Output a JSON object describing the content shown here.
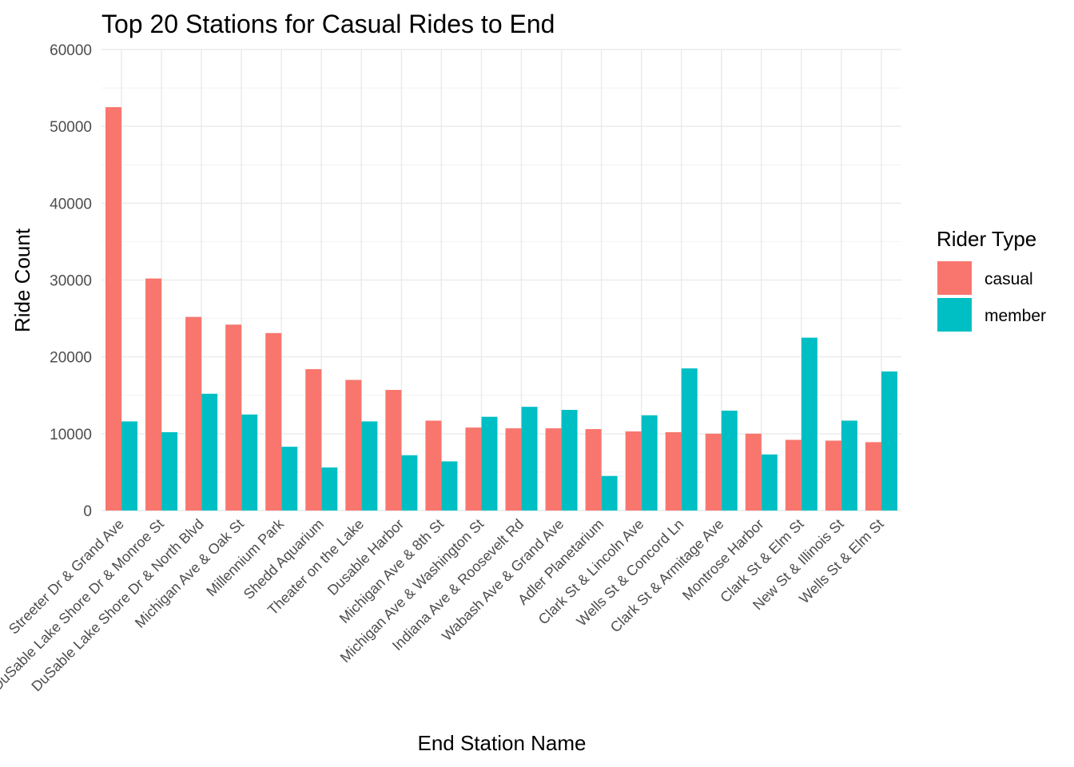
{
  "chart_data": {
    "type": "bar",
    "title": "Top 20 Stations for Casual Rides to End",
    "xlabel": "End Station Name",
    "ylabel": "Ride Count",
    "ylim": [
      0,
      60000
    ],
    "yticks": [
      0,
      10000,
      20000,
      30000,
      40000,
      50000,
      60000
    ],
    "grid": true,
    "legend": {
      "title": "Rider Type",
      "position": "right"
    },
    "categories": [
      "Streeter Dr & Grand Ave",
      "DuSable Lake Shore Dr & Monroe St",
      "DuSable Lake Shore Dr & North Blvd",
      "Michigan Ave & Oak St",
      "Millennium Park",
      "Shedd Aquarium",
      "Theater on the Lake",
      "Dusable Harbor",
      "Michigan Ave & 8th St",
      "Michigan Ave & Washington St",
      "Indiana Ave & Roosevelt Rd",
      "Wabash Ave & Grand Ave",
      "Adler Planetarium",
      "Clark St & Lincoln Ave",
      "Wells St & Concord Ln",
      "Clark St & Armitage Ave",
      "Montrose Harbor",
      "Clark St & Elm St",
      "New St & Illinois St",
      "Wells St & Elm St"
    ],
    "series": [
      {
        "name": "casual",
        "color": "#F8766D",
        "values": [
          52500,
          30200,
          25200,
          24200,
          23100,
          18400,
          17000,
          15700,
          11700,
          10800,
          10700,
          10700,
          10600,
          10300,
          10200,
          10000,
          10000,
          9200,
          9100,
          8900
        ]
      },
      {
        "name": "member",
        "color": "#00BFC4",
        "values": [
          11600,
          10200,
          15200,
          12500,
          8300,
          5600,
          11600,
          7200,
          6400,
          12200,
          13500,
          13100,
          4500,
          12400,
          18500,
          13000,
          7300,
          22500,
          11700,
          18100
        ]
      }
    ]
  }
}
